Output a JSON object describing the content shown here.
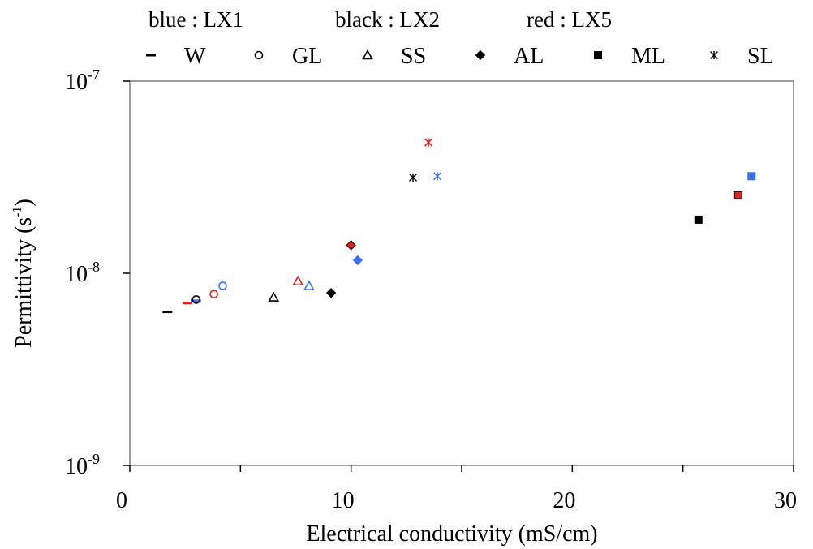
{
  "chart_data": {
    "type": "scatter",
    "xlabel": "Electrical conductivity (mS/cm)",
    "ylabel_main": "Permittivity (s",
    "ylabel_sup": "-1",
    "ylabel_close": ")",
    "xlim": [
      0,
      30
    ],
    "ylim": [
      1e-09,
      1e-07
    ],
    "y_scale": "log",
    "grid": false,
    "legend_placement": "top",
    "x_ticks": [
      {
        "value": 0,
        "label": "0"
      },
      {
        "value": 10,
        "label": "10"
      },
      {
        "value": 20,
        "label": "20"
      },
      {
        "value": 30,
        "label": "30"
      }
    ],
    "x_minor_ticks": [
      5,
      15,
      25
    ],
    "y_ticks": [
      {
        "value": 1e-07,
        "base": "10",
        "exp": "-7"
      },
      {
        "value": 1e-08,
        "base": "10",
        "exp": "-8"
      },
      {
        "value": 1e-09,
        "base": "10",
        "exp": "-9"
      }
    ],
    "color_legend": [
      {
        "label": "blue : LX1",
        "color": "#3a6ff2"
      },
      {
        "label": "black : LX2",
        "color": "#000000"
      },
      {
        "label": "red : LX5",
        "color": "#e01e1e"
      }
    ],
    "marker_legend": [
      {
        "label": "W",
        "marker": "dash"
      },
      {
        "label": "GL",
        "marker": "circle"
      },
      {
        "label": "SS",
        "marker": "triangle"
      },
      {
        "label": "AL",
        "marker": "diamond"
      },
      {
        "label": "ML",
        "marker": "square"
      },
      {
        "label": "SL",
        "marker": "asterisk"
      }
    ],
    "series": [
      {
        "sample": "W",
        "marker": "dash",
        "points": [
          {
            "x": 1.7,
            "y": 6.3e-09,
            "color": "#000000"
          },
          {
            "x": 2.6,
            "y": 7e-09,
            "color": "#e01e1e"
          },
          {
            "x": 3.0,
            "y": 7.2e-09,
            "color": "#3a6ff2"
          }
        ]
      },
      {
        "sample": "GL",
        "marker": "circle",
        "points": [
          {
            "x": 3.8,
            "y": 7.8e-09,
            "color": "#e01e1e"
          },
          {
            "x": 4.2,
            "y": 8.6e-09,
            "color": "#3a6ff2"
          },
          {
            "x": 3.0,
            "y": 7.3e-09,
            "color": "#000000"
          }
        ]
      },
      {
        "sample": "SS",
        "marker": "triangle",
        "points": [
          {
            "x": 6.5,
            "y": 7.5e-09,
            "color": "#000000"
          },
          {
            "x": 7.6,
            "y": 9.1e-09,
            "color": "#e01e1e"
          },
          {
            "x": 8.1,
            "y": 8.6e-09,
            "color": "#3a6ff2"
          }
        ]
      },
      {
        "sample": "AL",
        "marker": "diamond",
        "points": [
          {
            "x": 9.1,
            "y": 7.9e-09,
            "color": "#000000"
          },
          {
            "x": 10.0,
            "y": 1.4e-08,
            "color": "#e01e1e"
          },
          {
            "x": 10.3,
            "y": 1.17e-08,
            "color": "#3a6ff2"
          }
        ]
      },
      {
        "sample": "ML",
        "marker": "square",
        "points": [
          {
            "x": 25.7,
            "y": 1.9e-08,
            "color": "#000000"
          },
          {
            "x": 27.5,
            "y": 2.55e-08,
            "color": "#e01e1e"
          },
          {
            "x": 28.1,
            "y": 3.2e-08,
            "color": "#3a6ff2"
          }
        ]
      },
      {
        "sample": "SL",
        "marker": "asterisk",
        "points": [
          {
            "x": 12.8,
            "y": 3.15e-08,
            "color": "#000000"
          },
          {
            "x": 13.5,
            "y": 4.8e-08,
            "color": "#e01e1e"
          },
          {
            "x": 13.9,
            "y": 3.2e-08,
            "color": "#3a6ff2"
          }
        ]
      }
    ]
  }
}
